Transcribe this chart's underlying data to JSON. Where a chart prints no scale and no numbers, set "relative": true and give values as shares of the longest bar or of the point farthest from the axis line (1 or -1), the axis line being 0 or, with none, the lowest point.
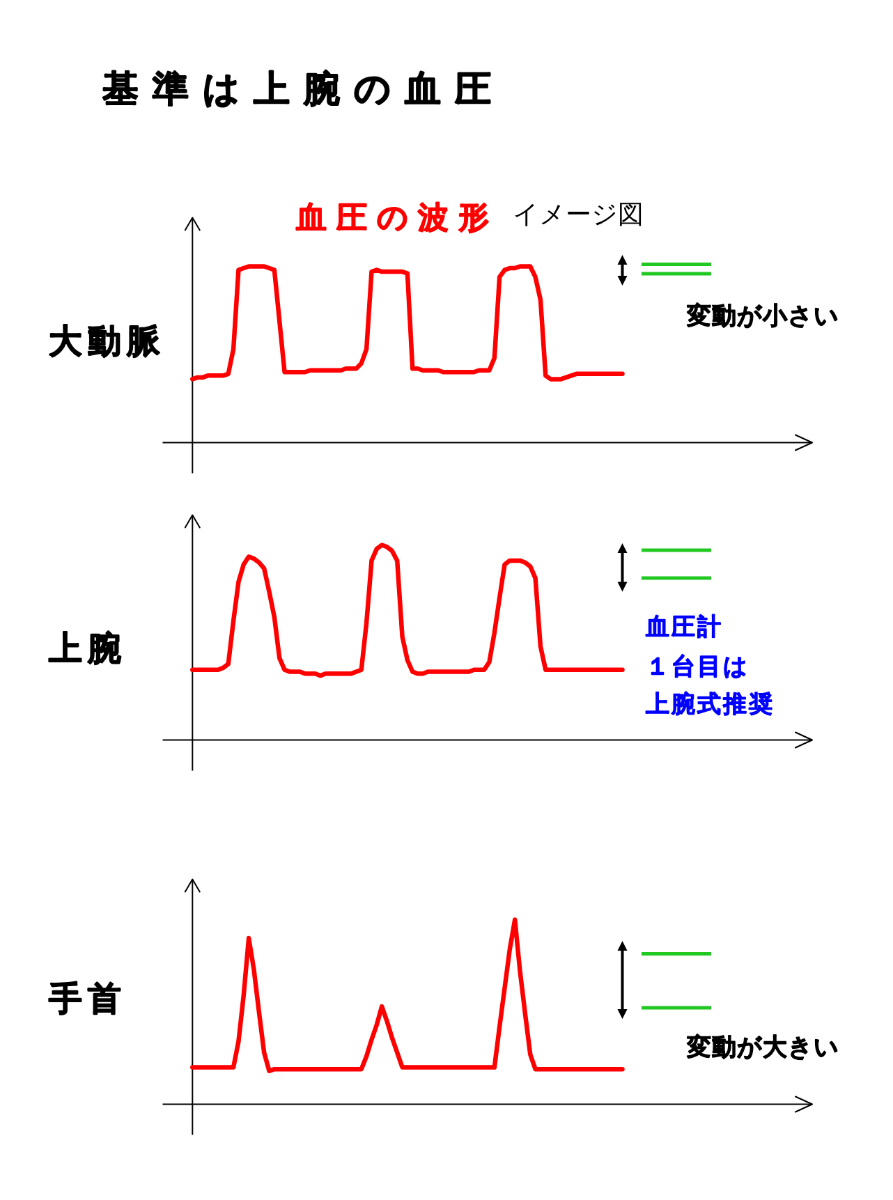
{
  "chart_data": [
    {
      "type": "line",
      "title": "基準は上腕の血圧",
      "subtitle": "血圧の波形",
      "ylabel": "大動脈",
      "annotations": [
        "イメージ図",
        "変動が小さい"
      ],
      "relative": true,
      "categories": [
        null,
        null,
        null,
        null,
        null,
        null,
        null,
        null,
        null,
        null,
        null,
        null,
        null,
        null,
        null,
        null,
        null,
        null,
        null,
        null,
        null,
        null,
        null,
        null,
        null,
        null,
        null,
        null,
        null,
        null,
        null,
        null,
        null,
        null,
        null,
        null,
        null,
        null,
        null,
        null,
        null,
        null,
        null,
        null,
        null,
        null,
        null,
        null,
        null,
        null,
        null,
        null,
        null,
        null,
        null,
        null,
        null,
        null,
        null,
        null,
        null,
        null,
        null,
        null,
        null,
        null,
        null,
        null,
        null,
        null,
        null,
        null,
        null,
        null,
        null,
        null,
        null,
        null,
        null,
        null,
        null,
        null,
        null,
        null,
        null
      ],
      "series": [
        {
          "color": "#ff0000",
          "values": [
            0.36,
            0.37,
            0.37,
            0.38,
            0.38,
            0.38,
            0.38,
            0.39,
            0.53,
            0.98,
            0.99,
            1.0,
            1.0,
            1.0,
            1.0,
            0.99,
            0.98,
            0.69,
            0.4,
            0.4,
            0.4,
            0.4,
            0.4,
            0.41,
            0.41,
            0.41,
            0.41,
            0.41,
            0.41,
            0.41,
            0.42,
            0.42,
            0.42,
            0.45,
            0.53,
            0.97,
            0.98,
            0.97,
            0.97,
            0.97,
            0.97,
            0.97,
            0.96,
            0.42,
            0.42,
            0.41,
            0.41,
            0.41,
            0.41,
            0.4,
            0.4,
            0.4,
            0.4,
            0.4,
            0.4,
            0.4,
            0.41,
            0.41,
            0.41,
            0.48,
            0.94,
            0.98,
            0.99,
            0.99,
            1.0,
            1.0,
            1.0,
            0.94,
            0.81,
            0.38,
            0.36,
            0.36,
            0.36,
            0.37,
            0.38,
            0.39,
            0.39,
            0.39,
            0.39,
            0.39,
            0.39,
            0.39,
            0.39,
            0.39,
            0.39
          ]
        }
      ]
    },
    {
      "type": "line",
      "ylabel": "上腕",
      "annotations": [
        "血圧計",
        "１台目は",
        "上腕式推奨"
      ],
      "relative": true,
      "categories": [
        null,
        null,
        null,
        null,
        null,
        null,
        null,
        null,
        null,
        null,
        null,
        null,
        null,
        null,
        null,
        null,
        null,
        null,
        null,
        null,
        null,
        null,
        null,
        null,
        null,
        null,
        null,
        null,
        null,
        null,
        null,
        null,
        null,
        null,
        null,
        null,
        null,
        null,
        null,
        null,
        null,
        null,
        null,
        null,
        null,
        null,
        null,
        null,
        null,
        null,
        null,
        null,
        null,
        null,
        null,
        null,
        null,
        null,
        null,
        null,
        null,
        null,
        null,
        null,
        null,
        null,
        null,
        null,
        null,
        null,
        null,
        null,
        null,
        null,
        null,
        null,
        null,
        null,
        null,
        null,
        null,
        null,
        null,
        null,
        null
      ],
      "series": [
        {
          "color": "#ff0000",
          "values": [
            0.36,
            0.36,
            0.36,
            0.36,
            0.36,
            0.36,
            0.37,
            0.39,
            0.61,
            0.81,
            0.9,
            0.94,
            0.93,
            0.91,
            0.88,
            0.76,
            0.63,
            0.42,
            0.36,
            0.35,
            0.35,
            0.35,
            0.34,
            0.34,
            0.34,
            0.33,
            0.34,
            0.34,
            0.34,
            0.34,
            0.34,
            0.34,
            0.35,
            0.36,
            0.6,
            0.92,
            0.98,
            1.0,
            0.99,
            0.97,
            0.92,
            0.53,
            0.41,
            0.35,
            0.34,
            0.34,
            0.35,
            0.35,
            0.35,
            0.35,
            0.35,
            0.35,
            0.35,
            0.35,
            0.35,
            0.36,
            0.36,
            0.36,
            0.4,
            0.55,
            0.73,
            0.9,
            0.92,
            0.92,
            0.92,
            0.91,
            0.89,
            0.83,
            0.48,
            0.36,
            0.36,
            0.36,
            0.36,
            0.36,
            0.36,
            0.36,
            0.36,
            0.36,
            0.36,
            0.36,
            0.36,
            0.36,
            0.36,
            0.36,
            0.36
          ]
        }
      ]
    },
    {
      "type": "line",
      "ylabel": "手首",
      "annotations": [
        "変動が大きい"
      ],
      "relative": true,
      "categories": [
        null,
        null,
        null,
        null,
        null,
        null,
        null,
        null,
        null,
        null,
        null,
        null,
        null,
        null,
        null,
        null,
        null,
        null,
        null,
        null,
        null,
        null,
        null,
        null,
        null,
        null,
        null,
        null,
        null,
        null,
        null,
        null,
        null,
        null,
        null,
        null,
        null,
        null,
        null,
        null,
        null,
        null,
        null,
        null,
        null,
        null,
        null,
        null,
        null,
        null,
        null,
        null,
        null,
        null,
        null,
        null,
        null,
        null,
        null,
        null,
        null,
        null,
        null,
        null,
        null,
        null,
        null,
        null,
        null,
        null,
        null,
        null,
        null,
        null,
        null,
        null,
        null,
        null,
        null,
        null,
        null,
        null,
        null,
        null,
        null
      ],
      "series": [
        {
          "color": "#ff0000",
          "values": [
            0.2,
            0.2,
            0.2,
            0.2,
            0.2,
            0.2,
            0.2,
            0.2,
            0.2,
            0.34,
            0.59,
            0.9,
            0.73,
            0.5,
            0.28,
            0.18,
            0.19,
            0.19,
            0.19,
            0.19,
            0.19,
            0.19,
            0.19,
            0.19,
            0.19,
            0.19,
            0.19,
            0.19,
            0.19,
            0.19,
            0.19,
            0.19,
            0.19,
            0.19,
            0.26,
            0.35,
            0.43,
            0.53,
            0.45,
            0.36,
            0.28,
            0.2,
            0.2,
            0.2,
            0.2,
            0.2,
            0.2,
            0.2,
            0.2,
            0.2,
            0.2,
            0.2,
            0.2,
            0.2,
            0.2,
            0.2,
            0.2,
            0.2,
            0.2,
            0.2,
            0.42,
            0.63,
            0.84,
            1.0,
            0.72,
            0.49,
            0.27,
            0.19,
            0.19,
            0.19,
            0.19,
            0.19,
            0.19,
            0.19,
            0.19,
            0.19,
            0.19,
            0.19,
            0.19,
            0.19,
            0.19,
            0.19,
            0.19,
            0.19,
            0.19
          ]
        }
      ]
    }
  ]
}
